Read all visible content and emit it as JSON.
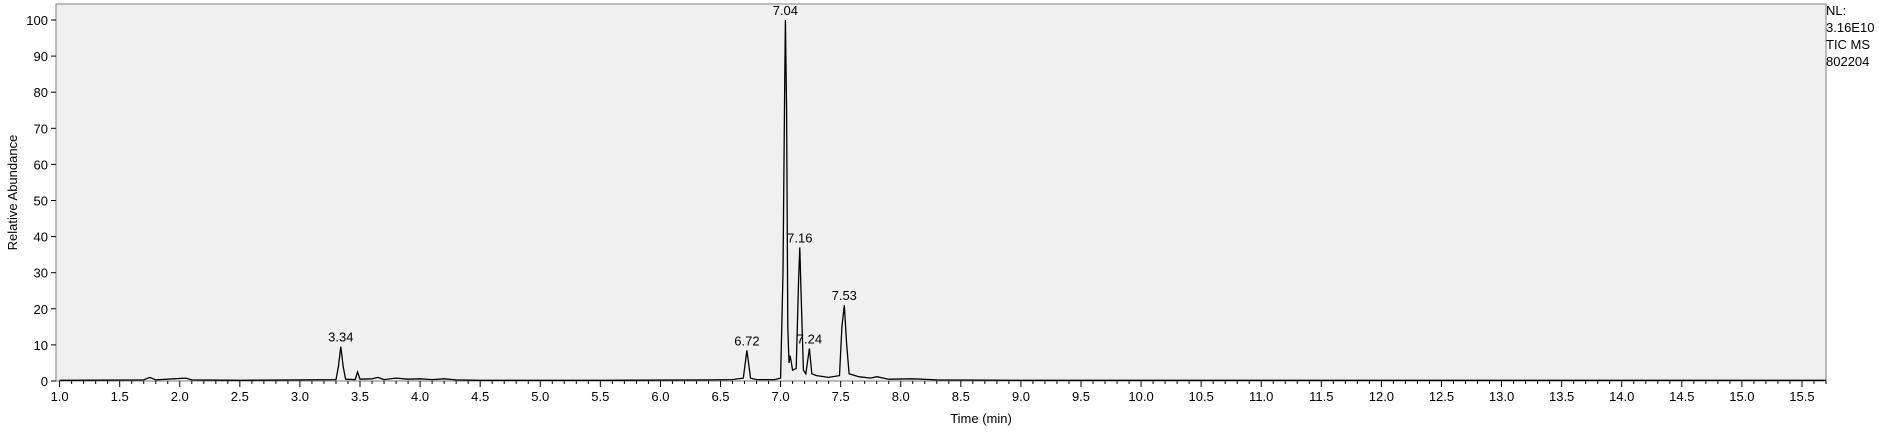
{
  "chart_data": {
    "type": "line",
    "title": "",
    "xlabel": "Time (min)",
    "ylabel": "Relative Abundance",
    "xlim": [
      0.97,
      15.7
    ],
    "ylim": [
      0,
      100
    ],
    "x_ticks": [
      1.0,
      1.5,
      2.0,
      2.5,
      3.0,
      3.5,
      4.0,
      4.5,
      5.0,
      5.5,
      6.0,
      6.5,
      7.0,
      7.5,
      8.0,
      8.5,
      9.0,
      9.5,
      10.0,
      10.5,
      11.0,
      11.5,
      12.0,
      12.5,
      13.0,
      13.5,
      14.0,
      14.5,
      15.0,
      15.5
    ],
    "x_tick_labels": [
      "1.0",
      "1.5",
      "2.0",
      "2.5",
      "3.0",
      "3.5",
      "4.0",
      "4.5",
      "5.0",
      "5.5",
      "6.0",
      "6.5",
      "7.0",
      "7.5",
      "8.0",
      "8.5",
      "9.0",
      "9.5",
      "10.0",
      "10.5",
      "11.0",
      "11.5",
      "12.0",
      "12.5",
      "13.0",
      "13.5",
      "14.0",
      "14.5",
      "15.0",
      "15.5"
    ],
    "y_ticks": [
      0,
      10,
      20,
      30,
      40,
      50,
      60,
      70,
      80,
      90,
      100
    ],
    "y_tick_labels": [
      "0",
      "10",
      "20",
      "30",
      "40",
      "50",
      "60",
      "70",
      "80",
      "90",
      "100"
    ],
    "grid": false,
    "plot_background": "#f0f0f0",
    "line_color": "#000000",
    "series": [
      {
        "points": [
          [
            1.0,
            0.2
          ],
          [
            1.7,
            0.3
          ],
          [
            1.75,
            1.0
          ],
          [
            1.8,
            0.3
          ],
          [
            1.95,
            0.6
          ],
          [
            2.05,
            0.8
          ],
          [
            2.1,
            0.3
          ],
          [
            2.5,
            0.2
          ],
          [
            3.0,
            0.3
          ],
          [
            3.3,
            0.4
          ],
          [
            3.32,
            4.0
          ],
          [
            3.34,
            9.5
          ],
          [
            3.36,
            4.0
          ],
          [
            3.38,
            0.5
          ],
          [
            3.46,
            0.4
          ],
          [
            3.48,
            2.5
          ],
          [
            3.5,
            0.5
          ],
          [
            3.6,
            0.6
          ],
          [
            3.65,
            1.0
          ],
          [
            3.7,
            0.4
          ],
          [
            3.8,
            0.8
          ],
          [
            3.9,
            0.5
          ],
          [
            4.0,
            0.6
          ],
          [
            4.1,
            0.4
          ],
          [
            4.2,
            0.6
          ],
          [
            4.3,
            0.3
          ],
          [
            4.5,
            0.2
          ],
          [
            5.5,
            0.2
          ],
          [
            6.4,
            0.3
          ],
          [
            6.6,
            0.4
          ],
          [
            6.69,
            0.8
          ],
          [
            6.72,
            8.5
          ],
          [
            6.75,
            0.8
          ],
          [
            6.8,
            0.4
          ],
          [
            6.95,
            0.4
          ],
          [
            7.0,
            0.8
          ],
          [
            7.02,
            30.0
          ],
          [
            7.035,
            85.0
          ],
          [
            7.04,
            100.0
          ],
          [
            7.05,
            75.0
          ],
          [
            7.06,
            15.0
          ],
          [
            7.07,
            5.0
          ],
          [
            7.08,
            7.0
          ],
          [
            7.1,
            3.0
          ],
          [
            7.13,
            3.5
          ],
          [
            7.15,
            28.0
          ],
          [
            7.16,
            37.0
          ],
          [
            7.17,
            25.0
          ],
          [
            7.19,
            3.0
          ],
          [
            7.21,
            2.0
          ],
          [
            7.24,
            9.0
          ],
          [
            7.26,
            2.0
          ],
          [
            7.3,
            1.5
          ],
          [
            7.4,
            1.0
          ],
          [
            7.49,
            1.5
          ],
          [
            7.51,
            15.0
          ],
          [
            7.53,
            21.0
          ],
          [
            7.55,
            10.0
          ],
          [
            7.57,
            2.0
          ],
          [
            7.65,
            1.2
          ],
          [
            7.75,
            0.8
          ],
          [
            7.8,
            1.2
          ],
          [
            7.9,
            0.5
          ],
          [
            8.1,
            0.6
          ],
          [
            8.3,
            0.3
          ],
          [
            9.0,
            0.2
          ],
          [
            12.0,
            0.2
          ],
          [
            15.7,
            0.2
          ]
        ]
      }
    ],
    "annotations": [
      {
        "x": 3.34,
        "y": 9.5,
        "label": "3.34"
      },
      {
        "x": 6.72,
        "y": 8.5,
        "label": "6.72"
      },
      {
        "x": 7.04,
        "y": 100.0,
        "label": "7.04"
      },
      {
        "x": 7.16,
        "y": 37.0,
        "label": "7.16"
      },
      {
        "x": 7.24,
        "y": 9.0,
        "label": "7.24"
      },
      {
        "x": 7.53,
        "y": 21.0,
        "label": "7.53"
      }
    ]
  },
  "info": {
    "nl_label": "NL:",
    "nl_value": "3.16E10",
    "scan_filter": "TIC  MS",
    "file_name": "802204"
  }
}
